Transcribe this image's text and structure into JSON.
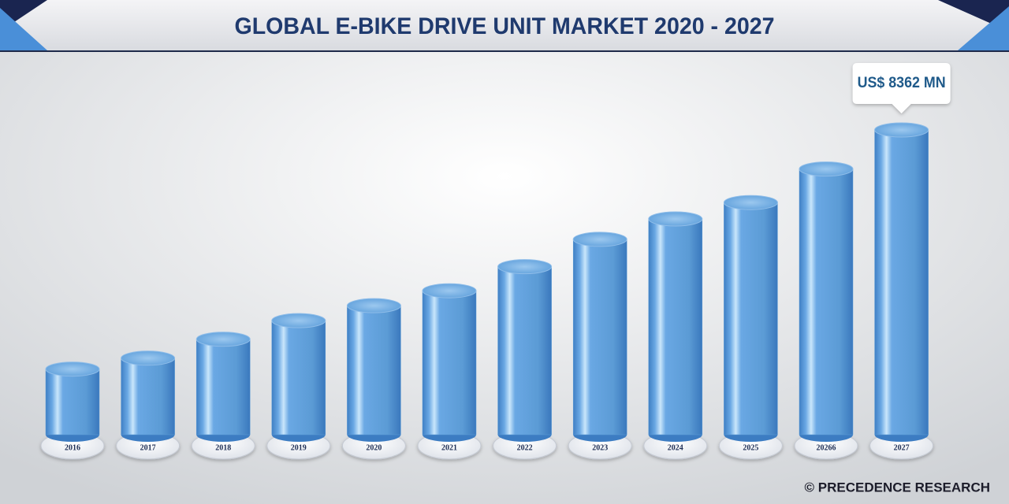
{
  "chart_data": {
    "type": "bar",
    "title": "GLOBAL E-BIKE DRIVE UNIT MARKET 2020 - 2027",
    "categories": [
      "2016",
      "2017",
      "2018",
      "2019",
      "2020",
      "2021",
      "2022",
      "2023",
      "2024",
      "2025",
      "20266",
      "2027"
    ],
    "values": [
      1800,
      2100,
      2620,
      3130,
      3540,
      3950,
      4610,
      5360,
      5920,
      6370,
      7290,
      8362
    ],
    "value_labels": [
      null,
      null,
      null,
      null,
      null,
      null,
      null,
      null,
      null,
      null,
      null,
      "US$ 8362 MN"
    ],
    "color": "#5b9bd5",
    "source": "© PRECEDENCE RESEARCH"
  }
}
